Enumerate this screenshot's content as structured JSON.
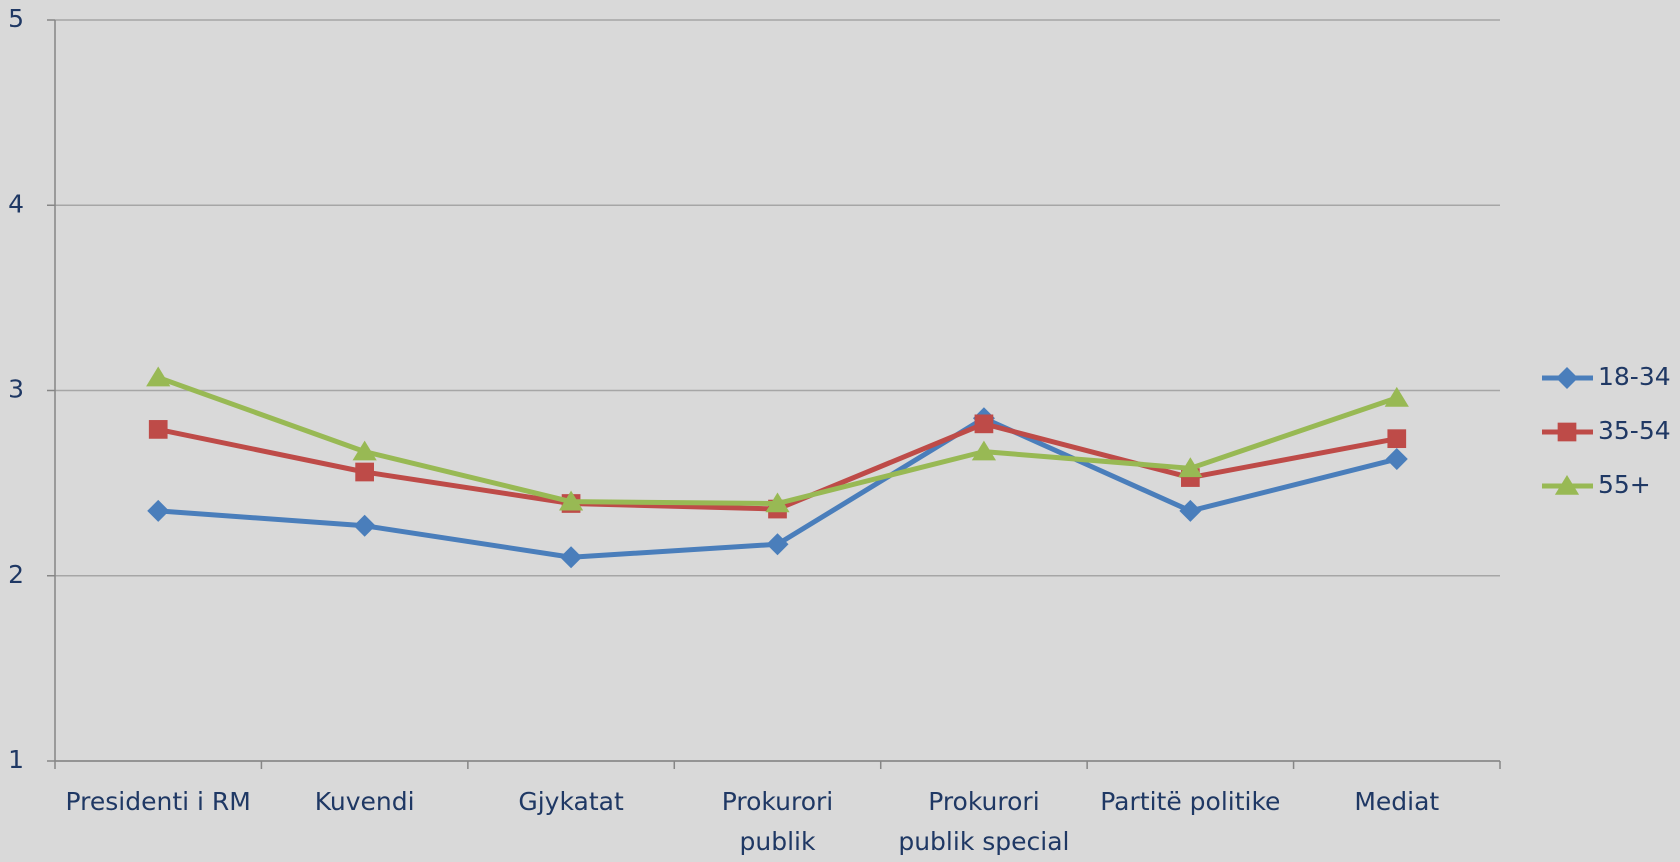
{
  "chart_data": {
    "type": "line",
    "categories": [
      "Presidenti i RM",
      "Kuvendi",
      "Gjykatat",
      "Prokurori\npublik",
      "Prokurori\npublik special",
      "Partitë politike",
      "Mediat"
    ],
    "series": [
      {
        "name": "18-34",
        "color": "#4a7ebb",
        "marker": "diamond",
        "values": [
          2.35,
          2.27,
          2.1,
          2.17,
          2.85,
          2.35,
          2.63
        ]
      },
      {
        "name": "35-54",
        "color": "#be4b48",
        "marker": "square",
        "values": [
          2.79,
          2.56,
          2.39,
          2.36,
          2.82,
          2.53,
          2.74
        ]
      },
      {
        "name": "55+",
        "color": "#98b954",
        "marker": "triangle",
        "values": [
          3.07,
          2.67,
          2.4,
          2.39,
          2.67,
          2.58,
          2.96
        ]
      }
    ],
    "ylim": [
      1,
      5
    ],
    "yticks": [
      1,
      2,
      3,
      4,
      5
    ],
    "grid": true,
    "legend": "right"
  }
}
